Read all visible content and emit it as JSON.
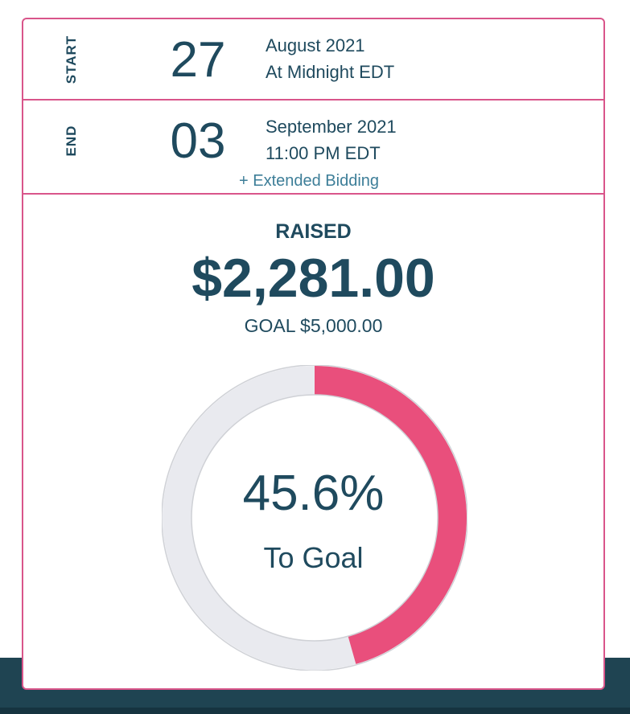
{
  "schedule": {
    "start": {
      "label": "START",
      "day": "27",
      "month_year": "August 2021",
      "time": "At Midnight EDT"
    },
    "end": {
      "label": "END",
      "day": "03",
      "month_year": "September 2021",
      "time": "11:00 PM EDT",
      "extended_link": "+ Extended Bidding"
    }
  },
  "fundraising": {
    "raised_label": "RAISED",
    "raised_amount": "$2,281.00",
    "goal_text": "GOAL $5,000.00",
    "progress_text": "45.6%",
    "progress_fraction": 0.456,
    "progress_caption": "To Goal"
  },
  "colors": {
    "accent": "#e94f7c",
    "border": "#d9558a",
    "text": "#1f4a5e",
    "link": "#3d7e98",
    "track": "#e9eaef",
    "footer": "#1f4452"
  }
}
